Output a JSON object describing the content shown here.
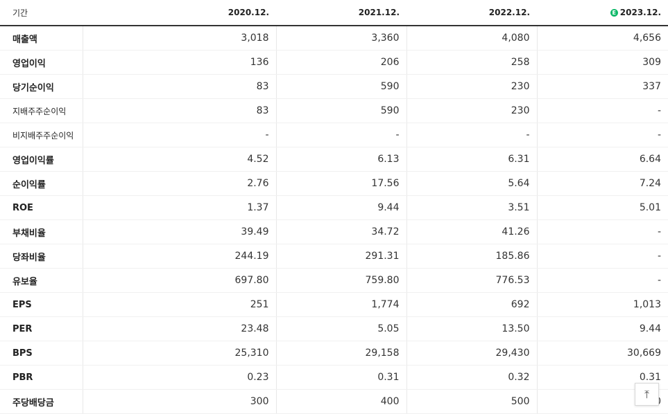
{
  "header": {
    "period_label": "기간",
    "years": [
      "2020.12.",
      "2021.12.",
      "2022.12.",
      "2023.12."
    ],
    "estimate_badge": "E",
    "estimate_color": "#10b96a"
  },
  "rows": [
    {
      "label": "매출액",
      "values": [
        "3,018",
        "3,360",
        "4,080",
        "4,656"
      ]
    },
    {
      "label": "영업이익",
      "values": [
        "136",
        "206",
        "258",
        "309"
      ]
    },
    {
      "label": "당기순이익",
      "values": [
        "83",
        "590",
        "230",
        "337"
      ]
    },
    {
      "label": "지배주주순이익",
      "values": [
        "83",
        "590",
        "230",
        "-"
      ]
    },
    {
      "label": "비지배주주순이익",
      "values": [
        "-",
        "-",
        "-",
        "-"
      ]
    },
    {
      "label": "영업이익률",
      "values": [
        "4.52",
        "6.13",
        "6.31",
        "6.64"
      ]
    },
    {
      "label": "순이익률",
      "values": [
        "2.76",
        "17.56",
        "5.64",
        "7.24"
      ]
    },
    {
      "label": "ROE",
      "values": [
        "1.37",
        "9.44",
        "3.51",
        "5.01"
      ]
    },
    {
      "label": "부채비율",
      "values": [
        "39.49",
        "34.72",
        "41.26",
        "-"
      ]
    },
    {
      "label": "당좌비율",
      "values": [
        "244.19",
        "291.31",
        "185.86",
        "-"
      ]
    },
    {
      "label": "유보율",
      "values": [
        "697.80",
        "759.80",
        "776.53",
        "-"
      ]
    },
    {
      "label": "EPS",
      "values": [
        "251",
        "1,774",
        "692",
        "1,013"
      ]
    },
    {
      "label": "PER",
      "values": [
        "23.48",
        "5.05",
        "13.50",
        "9.44"
      ]
    },
    {
      "label": "BPS",
      "values": [
        "25,310",
        "29,158",
        "29,430",
        "30,669"
      ]
    },
    {
      "label": "PBR",
      "values": [
        "0.23",
        "0.31",
        "0.32",
        "0.31"
      ]
    },
    {
      "label": "주당배당금",
      "values": [
        "300",
        "400",
        "500",
        "0"
      ]
    }
  ],
  "top_button": {
    "icon": "arrow-up-to-top-icon",
    "glyph": "⤒"
  }
}
